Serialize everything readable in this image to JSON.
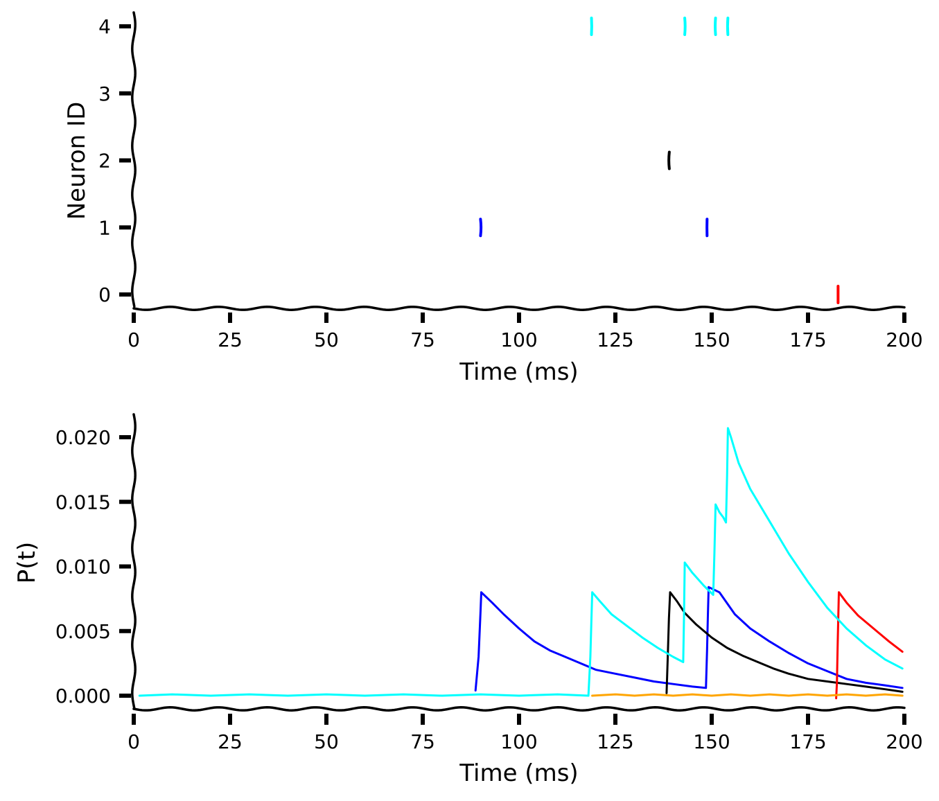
{
  "chart_data": [
    {
      "type": "scatter",
      "subtype": "raster",
      "title": "",
      "xlabel": "Time (ms)",
      "ylabel": "Neuron ID",
      "xlim": [
        0,
        200
      ],
      "ylim": [
        -0.2,
        4.2
      ],
      "xticks": [
        0,
        25,
        50,
        75,
        100,
        125,
        150,
        175,
        200
      ],
      "yticks": [
        0,
        1,
        2,
        3,
        4
      ],
      "grid": false,
      "legend": "none",
      "spikes": [
        {
          "neuron": 0,
          "color": "#ff0000",
          "times": [
            182.8
          ]
        },
        {
          "neuron": 1,
          "color": "#0000ff",
          "times": [
            90.0,
            148.8
          ]
        },
        {
          "neuron": 2,
          "color": "#000000",
          "times": [
            139.0
          ]
        },
        {
          "neuron": 3,
          "color": "#ffa500",
          "times": []
        },
        {
          "neuron": 4,
          "color": "#00ffff",
          "times": [
            118.8,
            143.0,
            151.0,
            154.2
          ]
        }
      ]
    },
    {
      "type": "line",
      "title": "",
      "xlabel": "Time (ms)",
      "ylabel": "P(t)",
      "xlim": [
        0,
        200
      ],
      "ylim": [
        -0.0012,
        0.0218
      ],
      "xticks": [
        0,
        25,
        50,
        75,
        100,
        125,
        150,
        175,
        200
      ],
      "yticks": [
        0.0,
        0.005,
        0.01,
        0.015,
        0.02
      ],
      "ytick_labels": [
        "0.000",
        "0.005",
        "0.010",
        "0.015",
        "0.020"
      ],
      "grid": false,
      "legend": "none",
      "series": [
        {
          "color": "#0000ff",
          "points": [
            [
              88.7,
              0.0004
            ],
            [
              89.5,
              0.003
            ],
            [
              90.0,
              0.0065
            ],
            [
              90.2,
              0.008
            ],
            [
              93,
              0.0072
            ],
            [
              96,
              0.0063
            ],
            [
              100,
              0.0052
            ],
            [
              104,
              0.0042
            ],
            [
              108,
              0.0035
            ],
            [
              112,
              0.003
            ],
            [
              116,
              0.0025
            ],
            [
              120,
              0.002
            ],
            [
              125,
              0.0017
            ],
            [
              130,
              0.0014
            ],
            [
              135,
              0.0011
            ],
            [
              140,
              0.0009
            ],
            [
              145,
              0.0007
            ],
            [
              148.5,
              0.0006
            ],
            [
              148.8,
              0.0035
            ],
            [
              149,
              0.006
            ],
            [
              149.2,
              0.0084
            ],
            [
              152,
              0.008
            ],
            [
              156,
              0.0063
            ],
            [
              160,
              0.0052
            ],
            [
              165,
              0.0042
            ],
            [
              170,
              0.0033
            ],
            [
              175,
              0.0025
            ],
            [
              180,
              0.0019
            ],
            [
              185,
              0.0013
            ],
            [
              190,
              0.001
            ],
            [
              195,
              0.0008
            ],
            [
              199.5,
              0.0006
            ]
          ]
        },
        {
          "color": "#000000",
          "points": [
            [
              138.3,
              0.0002
            ],
            [
              138.6,
              0.003
            ],
            [
              138.9,
              0.006
            ],
            [
              139.2,
              0.008
            ],
            [
              141,
              0.0073
            ],
            [
              143,
              0.0064
            ],
            [
              146,
              0.0055
            ],
            [
              150,
              0.0045
            ],
            [
              154,
              0.0037
            ],
            [
              158,
              0.0031
            ],
            [
              162,
              0.0026
            ],
            [
              166,
              0.0021
            ],
            [
              170,
              0.0017
            ],
            [
              175,
              0.0013
            ],
            [
              180,
              0.0011
            ],
            [
              185,
              0.0009
            ],
            [
              190,
              0.0007
            ],
            [
              195,
              0.0005
            ],
            [
              199.5,
              0.0003
            ]
          ]
        },
        {
          "color": "#ff0000",
          "points": [
            [
              182.3,
              -0.0002
            ],
            [
              182.5,
              0.001
            ],
            [
              182.7,
              0.004
            ],
            [
              183.0,
              0.008
            ],
            [
              185,
              0.0072
            ],
            [
              188,
              0.0062
            ],
            [
              192,
              0.0052
            ],
            [
              196,
              0.0042
            ],
            [
              199.5,
              0.0034
            ]
          ]
        },
        {
          "color": "#ffa500",
          "points": [
            [
              119,
              0.0
            ],
            [
              125,
              0.0001
            ],
            [
              130,
              0.0
            ],
            [
              135,
              0.0001
            ],
            [
              140,
              0.0
            ],
            [
              145,
              0.0001
            ],
            [
              150,
              0.0
            ],
            [
              155,
              0.0001
            ],
            [
              160,
              0.0
            ],
            [
              165,
              0.0001
            ],
            [
              170,
              0.0
            ],
            [
              175,
              0.0001
            ],
            [
              180,
              0.0
            ],
            [
              185,
              0.0001
            ],
            [
              190,
              0.0
            ],
            [
              195,
              0.0001
            ],
            [
              199.5,
              0.0
            ]
          ]
        },
        {
          "color": "#00ffff",
          "points": [
            [
              1.5,
              0.0
            ],
            [
              10,
              0.0001
            ],
            [
              20,
              0.0
            ],
            [
              30,
              0.0001
            ],
            [
              40,
              0.0
            ],
            [
              50,
              0.0001
            ],
            [
              60,
              0.0
            ],
            [
              70,
              0.0001
            ],
            [
              80,
              0.0
            ],
            [
              90,
              0.0001
            ],
            [
              100,
              0.0
            ],
            [
              110,
              0.0001
            ],
            [
              118,
              0.0
            ],
            [
              118.5,
              0.003
            ],
            [
              118.8,
              0.006
            ],
            [
              119.0,
              0.008
            ],
            [
              121,
              0.0073
            ],
            [
              124,
              0.0063
            ],
            [
              128,
              0.0054
            ],
            [
              132,
              0.0045
            ],
            [
              136,
              0.0037
            ],
            [
              140,
              0.003
            ],
            [
              142.6,
              0.0026
            ],
            [
              142.8,
              0.006
            ],
            [
              143.0,
              0.0103
            ],
            [
              145,
              0.0095
            ],
            [
              148,
              0.0085
            ],
            [
              150.4,
              0.0078
            ],
            [
              150.7,
              0.011
            ],
            [
              151.0,
              0.0148
            ],
            [
              152,
              0.0142
            ],
            [
              153,
              0.0138
            ],
            [
              153.7,
              0.0134
            ],
            [
              154.0,
              0.017
            ],
            [
              154.2,
              0.0207
            ],
            [
              155,
              0.02
            ],
            [
              157,
              0.018
            ],
            [
              160,
              0.016
            ],
            [
              165,
              0.0135
            ],
            [
              170,
              0.011
            ],
            [
              175,
              0.0088
            ],
            [
              180,
              0.0068
            ],
            [
              185,
              0.0052
            ],
            [
              190,
              0.0039
            ],
            [
              195,
              0.0028
            ],
            [
              199.5,
              0.0021
            ]
          ]
        }
      ]
    }
  ]
}
